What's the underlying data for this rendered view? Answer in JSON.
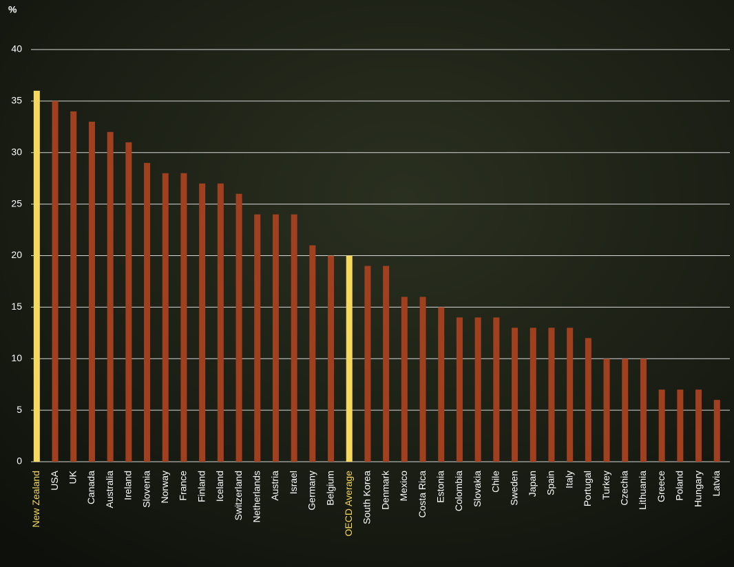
{
  "chart_data": {
    "type": "bar",
    "ylabel": "%",
    "categories": [
      "New Zealand",
      "USA",
      "UK",
      "Canada",
      "Australia",
      "Ireland",
      "Slovenia",
      "Norway",
      "France",
      "Finland",
      "Iceland",
      "Switzerland",
      "Netherlands",
      "Austria",
      "Israel",
      "Germany",
      "Belgium",
      "OECD Average",
      "South Korea",
      "Denmark",
      "Mexico",
      "Costa Rica",
      "Estonia",
      "Colombia",
      "Slovakia",
      "Chile",
      "Sweden",
      "Japan",
      "Spain",
      "Italy",
      "Portugal",
      "Turkey",
      "Czechia",
      "Lithuania",
      "Greece",
      "Poland",
      "Hungary",
      "Latvia"
    ],
    "values": [
      36,
      35,
      34,
      33,
      32,
      31,
      29,
      28,
      28,
      27,
      27,
      26,
      24,
      24,
      24,
      21,
      20,
      20,
      19,
      19,
      16,
      16,
      15,
      14,
      14,
      14,
      13,
      13,
      13,
      13,
      12,
      10,
      10,
      10,
      7,
      7,
      7,
      6
    ],
    "colors": [
      "#f5d95c",
      "#a0401f",
      "#a0401f",
      "#a0401f",
      "#a0401f",
      "#a0401f",
      "#a0401f",
      "#a0401f",
      "#a0401f",
      "#a0401f",
      "#a0401f",
      "#a0401f",
      "#a0401f",
      "#a0401f",
      "#a0401f",
      "#a0401f",
      "#a0401f",
      "#f5d95c",
      "#a0401f",
      "#a0401f",
      "#a0401f",
      "#a0401f",
      "#a0401f",
      "#a0401f",
      "#a0401f",
      "#a0401f",
      "#a0401f",
      "#a0401f",
      "#a0401f",
      "#a0401f",
      "#a0401f",
      "#a0401f",
      "#a0401f",
      "#a0401f",
      "#a0401f",
      "#a0401f",
      "#a0401f",
      "#a0401f"
    ],
    "ylim": [
      0,
      40
    ],
    "yticks": [
      0,
      5,
      10,
      15,
      20,
      25,
      30,
      35,
      40
    ],
    "grid": true
  }
}
